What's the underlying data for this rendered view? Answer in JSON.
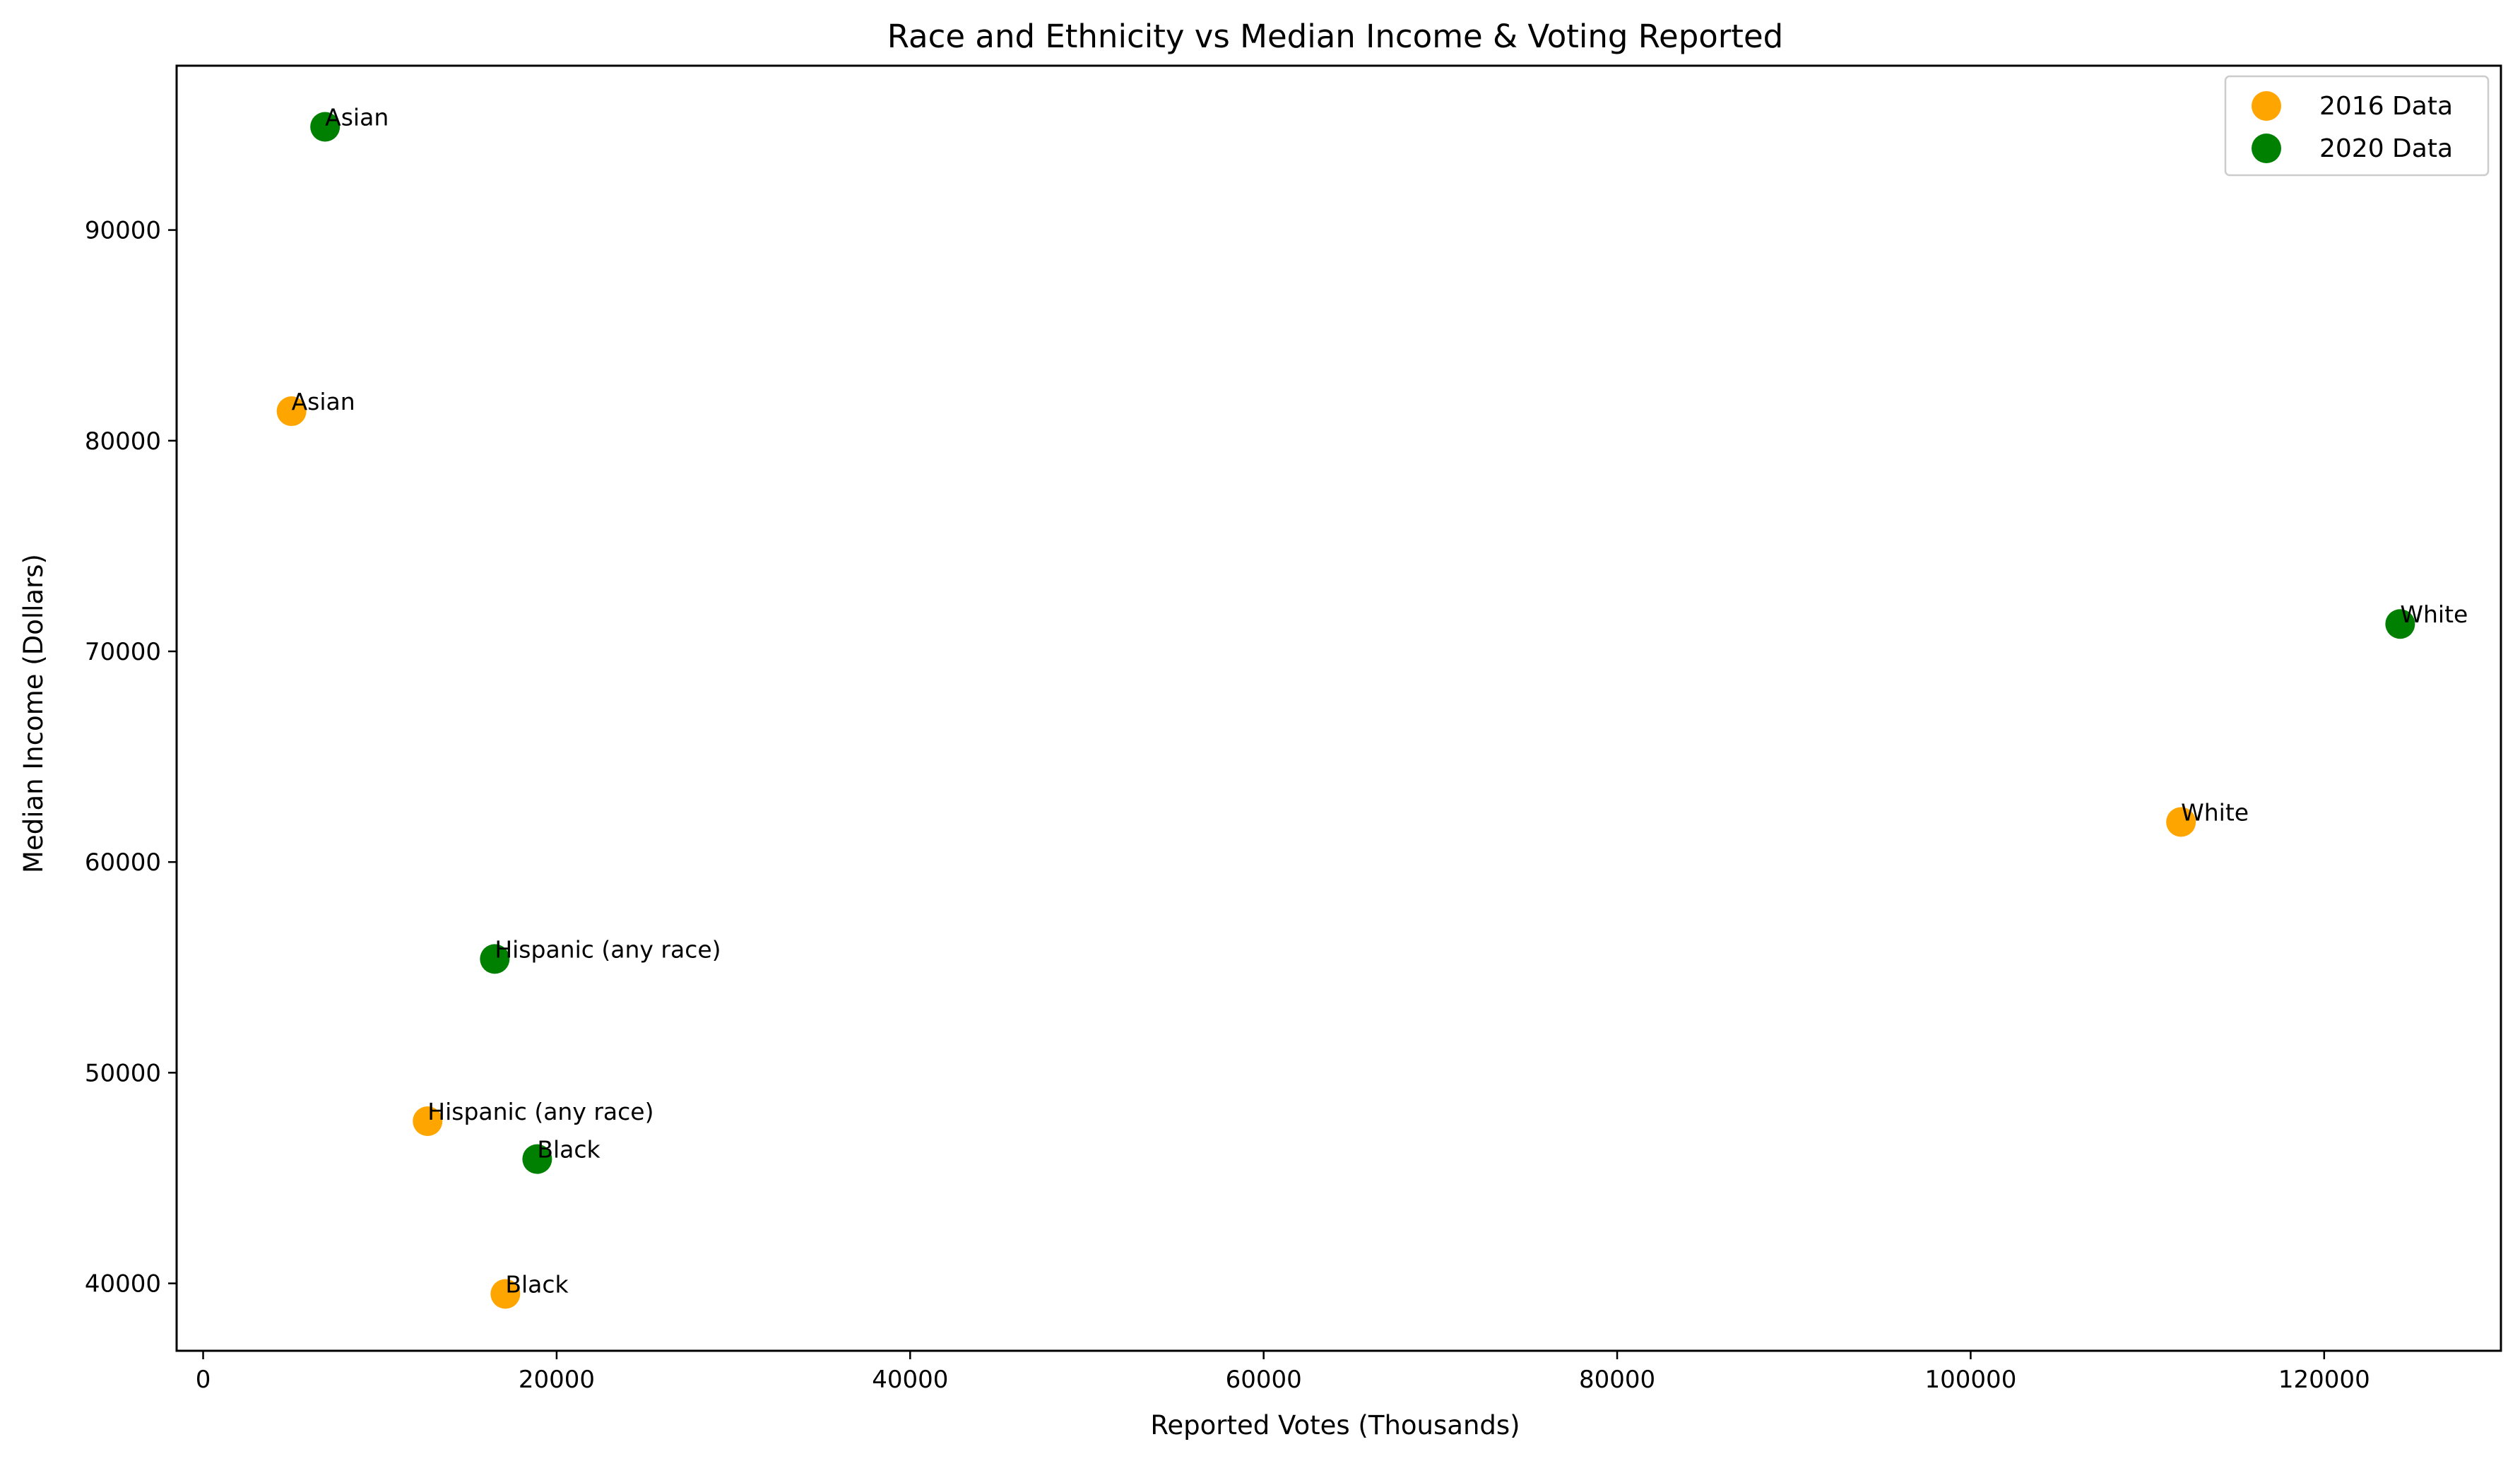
{
  "chart_data": {
    "type": "scatter",
    "title": "Race and Ethnicity vs Median Income & Voting Reported",
    "xlabel": "Reported Votes (Thousands)",
    "ylabel": "Median Income (Dollars)",
    "xlim": [
      -1500,
      130000
    ],
    "ylim": [
      36800,
      97800
    ],
    "xticks": [
      0,
      20000,
      40000,
      60000,
      80000,
      100000,
      120000
    ],
    "yticks": [
      40000,
      50000,
      60000,
      70000,
      80000,
      90000
    ],
    "grid": false,
    "legend_position": "top-right",
    "series": [
      {
        "name": "2016 Data",
        "color": "#ffa500",
        "points": [
          {
            "label": "Asian",
            "x": 5000,
            "y": 81400
          },
          {
            "label": "White",
            "x": 111900,
            "y": 61900
          },
          {
            "label": "Hispanic (any race)",
            "x": 12700,
            "y": 47700
          },
          {
            "label": "Black",
            "x": 17100,
            "y": 39500
          }
        ]
      },
      {
        "name": "2020 Data",
        "color": "#008000",
        "points": [
          {
            "label": "Asian",
            "x": 6900,
            "y": 94900
          },
          {
            "label": "White",
            "x": 124300,
            "y": 71300
          },
          {
            "label": "Hispanic (any race)",
            "x": 16500,
            "y": 55400
          },
          {
            "label": "Black",
            "x": 18900,
            "y": 45900
          }
        ]
      }
    ]
  }
}
